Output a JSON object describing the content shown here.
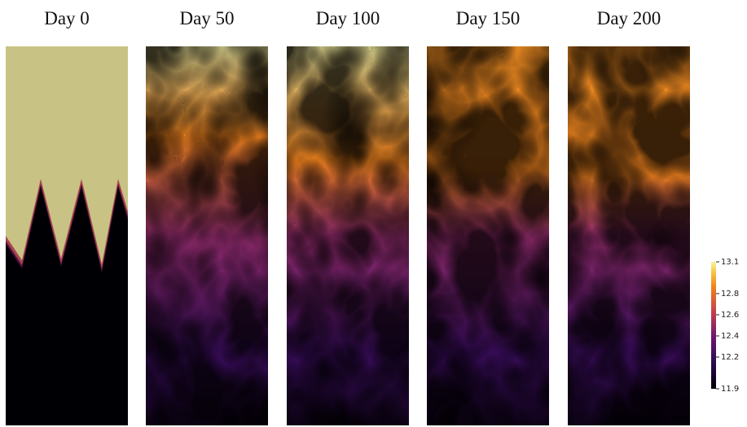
{
  "panels": [
    {
      "title": "Day 0"
    },
    {
      "title": "Day 50"
    },
    {
      "title": "Day 100"
    },
    {
      "title": "Day 150"
    },
    {
      "title": "Day 200"
    }
  ],
  "colorbar": {
    "range": [
      11.9,
      13.1
    ],
    "ticks": [
      11.9,
      12.2,
      12.4,
      12.6,
      12.8,
      13.1
    ]
  }
}
